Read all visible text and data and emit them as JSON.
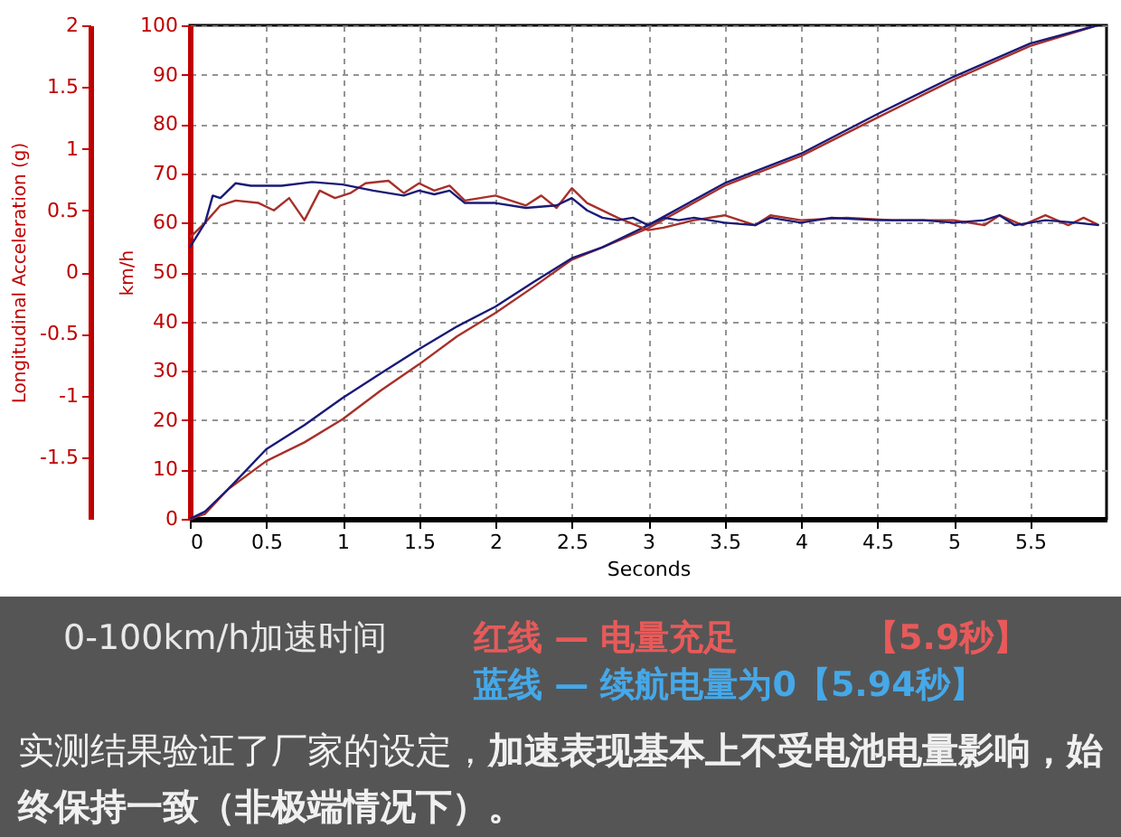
{
  "chart_data": {
    "type": "line",
    "xlabel": "Seconds",
    "ylabel": "km/h",
    "y2label": "Longitudinal Acceleration (g)",
    "xlim": [
      0,
      6
    ],
    "xticks": [
      0,
      0.5,
      1,
      1.5,
      2,
      2.5,
      3,
      3.5,
      4,
      4.5,
      5,
      5.5
    ],
    "ylim": [
      0,
      100
    ],
    "yticks": [
      0,
      10,
      20,
      30,
      40,
      50,
      60,
      70,
      80,
      90,
      100
    ],
    "y2lim": [
      -2,
      2
    ],
    "y2ticks": [
      -1.5,
      -1,
      -0.5,
      0,
      0.5,
      1,
      1.5,
      2
    ],
    "grid": true,
    "legend": false,
    "series": [
      {
        "color": "#a8302a",
        "x": [
          0,
          0.1,
          0.25,
          0.5,
          0.75,
          1,
          1.25,
          1.5,
          1.75,
          2,
          2.25,
          2.5,
          2.7,
          3,
          3.5,
          4,
          4.5,
          5,
          5.5,
          5.94
        ],
        "values": [
          0,
          1,
          6,
          11.7,
          15.5,
          20.2,
          26,
          31.3,
          37,
          41.7,
          47,
          52.5,
          55,
          58.9,
          67.5,
          73.5,
          81.3,
          89,
          95.8,
          100
        ]
      },
      {
        "color": "#1a1a78",
        "x": [
          0,
          0.1,
          0.25,
          0.5,
          0.75,
          1,
          1.25,
          1.5,
          1.75,
          2,
          2.25,
          2.5,
          2.7,
          3,
          3.5,
          4,
          4.5,
          5,
          5.5,
          5.94
        ],
        "values": [
          0,
          1.5,
          6,
          14.1,
          19,
          24.5,
          29.5,
          34.4,
          39,
          43,
          48,
          52.8,
          55,
          59.5,
          68,
          74,
          82,
          89.6,
          96.3,
          100
        ]
      },
      {
        "color": "#a8302a",
        "axis": "y2",
        "x": [
          0,
          0.1,
          0.2,
          0.3,
          0.45,
          0.55,
          0.65,
          0.75,
          0.85,
          0.95,
          1.05,
          1.15,
          1.3,
          1.4,
          1.5,
          1.6,
          1.7,
          1.8,
          2,
          2.2,
          2.3,
          2.4,
          2.5,
          2.6,
          2.8,
          3,
          3.1,
          3.3,
          3.5,
          3.7,
          3.8,
          4,
          4.3,
          4.6,
          5,
          5.2,
          5.3,
          5.45,
          5.6,
          5.75,
          5.85,
          5.95
        ],
        "values": [
          0.28,
          0.4,
          0.54,
          0.58,
          0.56,
          0.5,
          0.6,
          0.42,
          0.66,
          0.6,
          0.64,
          0.72,
          0.74,
          0.64,
          0.72,
          0.66,
          0.7,
          0.58,
          0.62,
          0.54,
          0.62,
          0.52,
          0.68,
          0.56,
          0.44,
          0.34,
          0.36,
          0.42,
          0.46,
          0.38,
          0.46,
          0.42,
          0.44,
          0.42,
          0.42,
          0.38,
          0.46,
          0.38,
          0.46,
          0.38,
          0.44,
          0.38
        ]
      },
      {
        "color": "#1a1a78",
        "axis": "y2",
        "x": [
          0,
          0.1,
          0.15,
          0.2,
          0.3,
          0.4,
          0.6,
          0.8,
          1,
          1.2,
          1.4,
          1.5,
          1.6,
          1.7,
          1.8,
          2,
          2.2,
          2.4,
          2.5,
          2.6,
          2.7,
          2.8,
          2.9,
          3,
          3.1,
          3.2,
          3.3,
          3.5,
          3.7,
          3.8,
          4,
          4.2,
          4.5,
          4.8,
          5,
          5.2,
          5.3,
          5.4,
          5.6,
          5.8,
          5.95
        ],
        "values": [
          0.2,
          0.4,
          0.62,
          0.6,
          0.72,
          0.7,
          0.7,
          0.73,
          0.71,
          0.66,
          0.62,
          0.66,
          0.63,
          0.66,
          0.56,
          0.56,
          0.52,
          0.54,
          0.6,
          0.5,
          0.44,
          0.42,
          0.44,
          0.38,
          0.44,
          0.42,
          0.44,
          0.4,
          0.38,
          0.44,
          0.4,
          0.44,
          0.42,
          0.42,
          0.4,
          0.42,
          0.46,
          0.38,
          0.42,
          0.4,
          0.38
        ]
      }
    ],
    "annotations": [
      "0-100km/h加速时间",
      "红线 — 电量充足",
      "【5.9秒】",
      "蓝线 — 续航电量为0【5.94秒】",
      "实测结果验证了厂家的设定，",
      "加速表现基本上不受电池电量影响，始终保持一致（非极端情况下）。"
    ]
  }
}
